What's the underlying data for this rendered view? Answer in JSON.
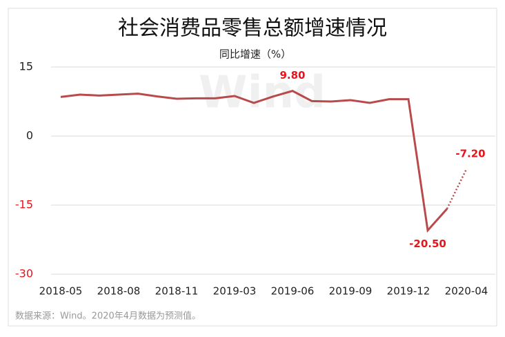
{
  "chart_data": {
    "type": "line",
    "title": "社会消费品零售总额增速情况",
    "subtitle": "同比增速（%）",
    "watermark": "Wind",
    "source": "数据来源：Wind。2020年4月数据为预测值。",
    "categories": [
      "2018-05",
      null,
      null,
      "2018-08",
      null,
      null,
      "2018-11",
      null,
      null,
      "2019-03",
      null,
      null,
      "2019-06",
      null,
      null,
      "2019-09",
      null,
      null,
      "2019-12",
      null,
      null,
      "2020-04"
    ],
    "series": [
      {
        "color": "#b94a4b",
        "values": [
          8.5,
          9.0,
          8.8,
          9.0,
          9.2,
          8.6,
          8.1,
          8.2,
          8.2,
          8.7,
          7.2,
          8.6,
          9.8,
          7.6,
          7.5,
          7.8,
          7.2,
          8.0,
          8.0,
          -20.5,
          -15.8,
          -7.2
        ],
        "value_labels": [
          null,
          null,
          null,
          null,
          null,
          null,
          null,
          null,
          null,
          null,
          null,
          null,
          "9.80",
          null,
          null,
          null,
          null,
          null,
          null,
          "-20.50",
          null,
          "-7.20"
        ]
      }
    ],
    "dotted_from_index": 20,
    "label_color": "#e8141b",
    "ylim": [
      -30,
      15
    ],
    "yticks": [
      -30,
      -15,
      0,
      15
    ],
    "grid": true
  }
}
